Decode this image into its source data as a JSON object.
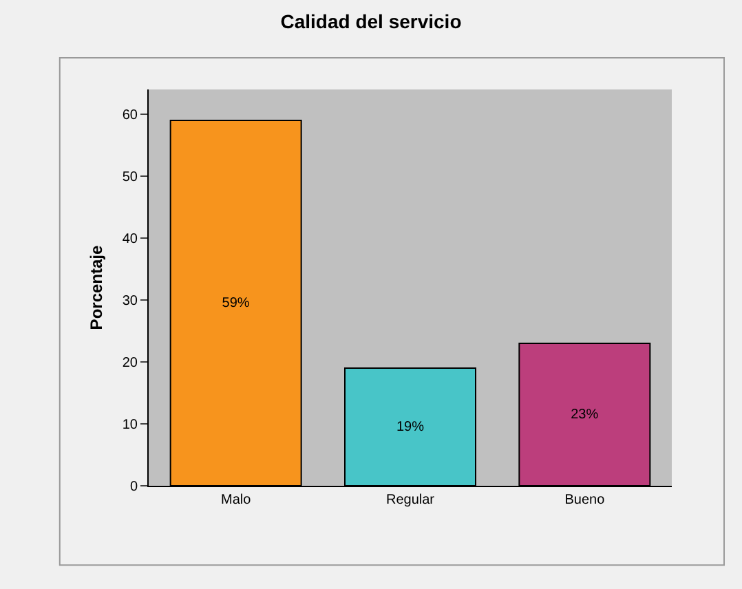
{
  "chart_data": {
    "type": "bar",
    "title": "Calidad del servicio",
    "ylabel": "Porcentaje",
    "categories": [
      "Malo",
      "Regular",
      "Bueno"
    ],
    "values": [
      59,
      19,
      23
    ],
    "colors": [
      "#f7941d",
      "#48c5c8",
      "#bc3e7c"
    ],
    "value_labels": [
      "59%",
      "19%",
      "23%"
    ],
    "ylim": [
      0,
      64
    ],
    "yticks": [
      0,
      10,
      20,
      30,
      40,
      50,
      60
    ],
    "grid": false
  }
}
